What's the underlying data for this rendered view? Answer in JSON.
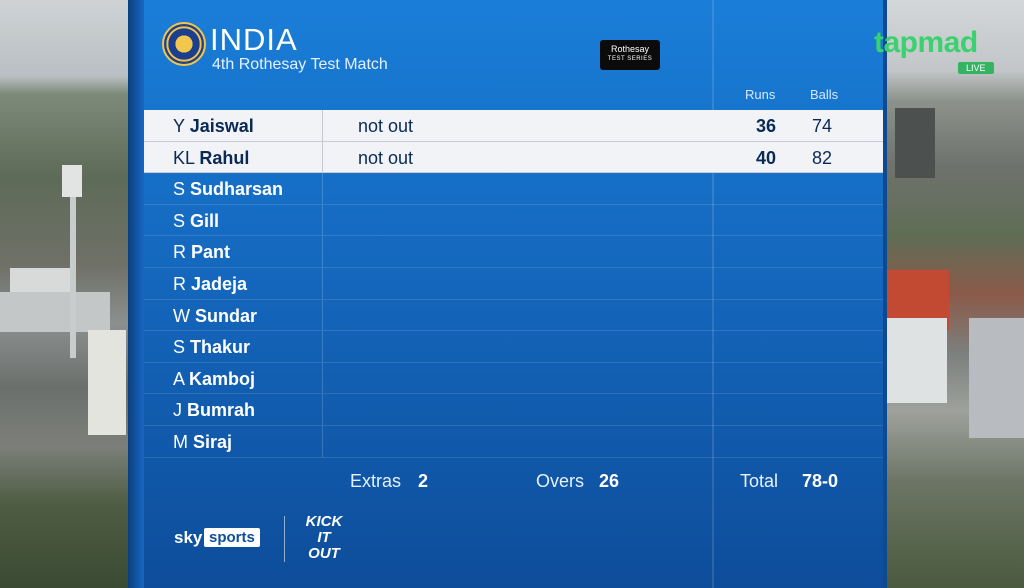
{
  "header": {
    "team": "INDIA",
    "match": "4th Rothesay Test Match",
    "badge_line1": "Rothesay",
    "badge_line2": "TEST SERIES",
    "col_runs": "Runs",
    "col_balls": "Balls"
  },
  "batters": [
    {
      "initial": "Y",
      "surname": "Jaiswal",
      "status": "not out",
      "runs": "36",
      "balls": "74"
    },
    {
      "initial": "KL",
      "surname": "Rahul",
      "status": "not out",
      "runs": "40",
      "balls": "82"
    },
    {
      "initial": "S",
      "surname": "Sudharsan",
      "status": "",
      "runs": "",
      "balls": ""
    },
    {
      "initial": "S",
      "surname": "Gill",
      "status": "",
      "runs": "",
      "balls": ""
    },
    {
      "initial": "R",
      "surname": "Pant",
      "status": "",
      "runs": "",
      "balls": ""
    },
    {
      "initial": "R",
      "surname": "Jadeja",
      "status": "",
      "runs": "",
      "balls": ""
    },
    {
      "initial": "W",
      "surname": "Sundar",
      "status": "",
      "runs": "",
      "balls": ""
    },
    {
      "initial": "S",
      "surname": "Thakur",
      "status": "",
      "runs": "",
      "balls": ""
    },
    {
      "initial": "A",
      "surname": "Kamboj",
      "status": "",
      "runs": "",
      "balls": ""
    },
    {
      "initial": "J",
      "surname": "Bumrah",
      "status": "",
      "runs": "",
      "balls": ""
    },
    {
      "initial": "M",
      "surname": "Siraj",
      "status": "",
      "runs": "",
      "balls": ""
    }
  ],
  "footer": {
    "extras_label": "Extras",
    "extras_value": "2",
    "overs_label": "Overs",
    "overs_value": "26",
    "total_label": "Total",
    "total_value": "78-0"
  },
  "branding": {
    "sky": "sky",
    "sports": "sports",
    "kick_it_out": "KICK IT OUT"
  },
  "watermark": {
    "brand": "tapmad",
    "live": "LIVE"
  },
  "colors": {
    "panel_blue": "#1363b8",
    "highlight_row": "#f1f3f6",
    "tapmad_green": "#3bd16f"
  }
}
